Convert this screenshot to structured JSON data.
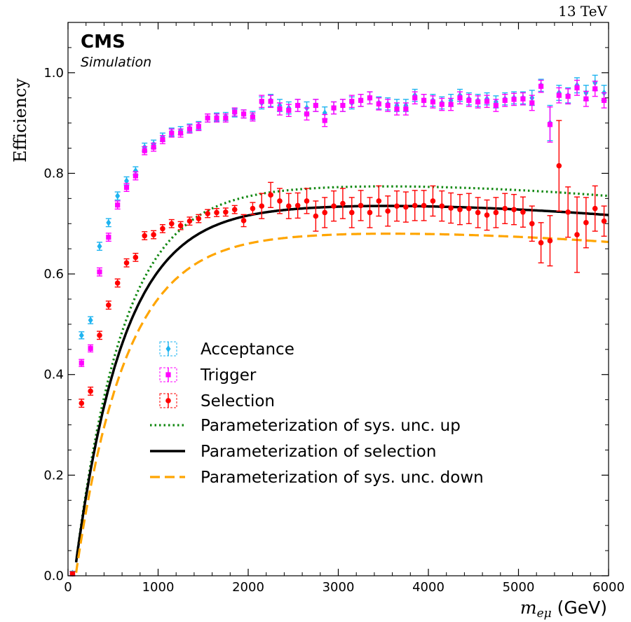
{
  "header": {
    "experiment": "CMS",
    "subtitle": "Simulation",
    "energy": "13 TeV"
  },
  "chart_data": {
    "type": "scatter",
    "xlabel_main": "m",
    "xlabel_sub": "eμ",
    "xlabel_unit": " (GeV)",
    "ylabel": "Efficiency",
    "xlim": [
      0,
      6000
    ],
    "ylim": [
      0,
      1.1
    ],
    "xticks": [
      0,
      1000,
      2000,
      3000,
      4000,
      5000,
      6000
    ],
    "xtick_labels": [
      "0",
      "1000",
      "2000",
      "3000",
      "4000",
      "5000",
      "6000"
    ],
    "yticks": [
      0.0,
      0.2,
      0.4,
      0.6,
      0.8,
      1.0
    ],
    "ytick_labels": [
      "0.0",
      "0.2",
      "0.4",
      "0.6",
      "0.8",
      "1.0"
    ],
    "grid": false,
    "legend_position": "center-left",
    "x": [
      50,
      150,
      250,
      350,
      450,
      550,
      650,
      750,
      850,
      950,
      1050,
      1150,
      1250,
      1350,
      1450,
      1550,
      1650,
      1750,
      1850,
      1950,
      2050,
      2150,
      2250,
      2350,
      2450,
      2550,
      2650,
      2750,
      2850,
      2950,
      3050,
      3150,
      3250,
      3350,
      3450,
      3550,
      3650,
      3750,
      3850,
      3950,
      4050,
      4150,
      4250,
      4350,
      4450,
      4550,
      4650,
      4750,
      4850,
      4950,
      5050,
      5150,
      5250,
      5350,
      5450,
      5550,
      5650,
      5750,
      5850,
      5950
    ],
    "series": [
      {
        "name": "Acceptance",
        "marker": "diamond",
        "color": "#1fb4f0",
        "values": [
          0.005,
          0.478,
          0.508,
          0.655,
          0.702,
          0.755,
          0.785,
          0.805,
          0.852,
          0.858,
          0.872,
          0.882,
          0.885,
          0.89,
          0.895,
          0.91,
          0.912,
          0.913,
          0.92,
          0.918,
          0.915,
          0.94,
          0.945,
          0.935,
          0.93,
          0.935,
          0.93,
          0.935,
          0.92,
          0.93,
          0.935,
          0.94,
          0.945,
          0.95,
          0.94,
          0.938,
          0.935,
          0.935,
          0.955,
          0.945,
          0.945,
          0.94,
          0.945,
          0.955,
          0.948,
          0.945,
          0.948,
          0.942,
          0.948,
          0.95,
          0.95,
          0.95,
          0.975,
          0.9,
          0.96,
          0.955,
          0.975,
          0.96,
          0.98,
          0.96
        ],
        "errors": [
          0.004,
          0.007,
          0.007,
          0.008,
          0.008,
          0.008,
          0.008,
          0.008,
          0.008,
          0.008,
          0.008,
          0.008,
          0.008,
          0.008,
          0.008,
          0.008,
          0.008,
          0.008,
          0.008,
          0.008,
          0.008,
          0.012,
          0.012,
          0.012,
          0.012,
          0.012,
          0.012,
          0.012,
          0.012,
          0.012,
          0.012,
          0.012,
          0.012,
          0.012,
          0.012,
          0.012,
          0.012,
          0.012,
          0.012,
          0.012,
          0.012,
          0.012,
          0.012,
          0.012,
          0.012,
          0.012,
          0.012,
          0.012,
          0.012,
          0.012,
          0.012,
          0.015,
          0.012,
          0.035,
          0.015,
          0.015,
          0.015,
          0.015,
          0.015,
          0.015
        ]
      },
      {
        "name": "Trigger",
        "marker": "square",
        "color": "#ff00ff",
        "values": [
          0.004,
          0.423,
          0.452,
          0.604,
          0.673,
          0.737,
          0.772,
          0.795,
          0.845,
          0.852,
          0.867,
          0.88,
          0.88,
          0.888,
          0.893,
          0.91,
          0.91,
          0.91,
          0.922,
          0.918,
          0.912,
          0.943,
          0.943,
          0.928,
          0.925,
          0.935,
          0.918,
          0.935,
          0.905,
          0.93,
          0.935,
          0.943,
          0.945,
          0.95,
          0.938,
          0.935,
          0.928,
          0.928,
          0.95,
          0.945,
          0.942,
          0.937,
          0.937,
          0.95,
          0.945,
          0.942,
          0.943,
          0.935,
          0.945,
          0.947,
          0.948,
          0.94,
          0.973,
          0.897,
          0.955,
          0.953,
          0.97,
          0.948,
          0.968,
          0.945
        ],
        "errors": [
          0.004,
          0.007,
          0.007,
          0.008,
          0.008,
          0.008,
          0.008,
          0.008,
          0.008,
          0.008,
          0.008,
          0.008,
          0.008,
          0.008,
          0.008,
          0.008,
          0.008,
          0.008,
          0.008,
          0.008,
          0.008,
          0.012,
          0.012,
          0.012,
          0.012,
          0.012,
          0.012,
          0.012,
          0.012,
          0.012,
          0.012,
          0.012,
          0.012,
          0.012,
          0.012,
          0.012,
          0.012,
          0.012,
          0.012,
          0.012,
          0.012,
          0.012,
          0.012,
          0.012,
          0.012,
          0.012,
          0.012,
          0.012,
          0.012,
          0.012,
          0.012,
          0.015,
          0.012,
          0.035,
          0.015,
          0.015,
          0.015,
          0.015,
          0.015,
          0.015
        ]
      },
      {
        "name": "Selection",
        "marker": "circle",
        "color": "#ff0000",
        "values": [
          0.004,
          0.343,
          0.367,
          0.478,
          0.538,
          0.582,
          0.622,
          0.633,
          0.676,
          0.678,
          0.69,
          0.7,
          0.696,
          0.705,
          0.71,
          0.72,
          0.722,
          0.723,
          0.728,
          0.706,
          0.73,
          0.735,
          0.757,
          0.745,
          0.735,
          0.736,
          0.745,
          0.715,
          0.722,
          0.735,
          0.74,
          0.722,
          0.736,
          0.722,
          0.745,
          0.725,
          0.735,
          0.733,
          0.736,
          0.736,
          0.745,
          0.735,
          0.731,
          0.728,
          0.73,
          0.722,
          0.717,
          0.722,
          0.73,
          0.728,
          0.723,
          0.7,
          0.662,
          0.666,
          0.815,
          0.723,
          0.678,
          0.702,
          0.73,
          0.705
        ],
        "errors": [
          0.004,
          0.008,
          0.008,
          0.008,
          0.008,
          0.008,
          0.008,
          0.008,
          0.008,
          0.008,
          0.008,
          0.008,
          0.008,
          0.008,
          0.008,
          0.008,
          0.008,
          0.008,
          0.008,
          0.012,
          0.012,
          0.025,
          0.025,
          0.025,
          0.025,
          0.025,
          0.025,
          0.03,
          0.03,
          0.03,
          0.03,
          0.03,
          0.03,
          0.03,
          0.03,
          0.03,
          0.03,
          0.03,
          0.03,
          0.03,
          0.03,
          0.03,
          0.03,
          0.03,
          0.03,
          0.03,
          0.03,
          0.03,
          0.03,
          0.03,
          0.03,
          0.035,
          0.04,
          0.05,
          0.09,
          0.05,
          0.075,
          0.05,
          0.045,
          0.03
        ]
      }
    ],
    "curves": [
      {
        "name": "Parameterization of sys. unc. up",
        "style": "dotted",
        "color": "#118811",
        "plateau": 0.776,
        "x0": 70,
        "k": 0.00185,
        "b": 9e-06,
        "xstart": 90
      },
      {
        "name": "Parameterization of selection",
        "style": "solid",
        "color": "#000000",
        "plateau": 0.737,
        "x0": 70,
        "k": 0.00185,
        "b": 9e-06,
        "xstart": 90
      },
      {
        "name": "Parameterization of sys. unc. down",
        "style": "dashed",
        "color": "#ffa500",
        "plateau": 0.682,
        "x0": 85,
        "k": 0.0018,
        "b": 9e-06,
        "xstart": 90
      }
    ]
  }
}
